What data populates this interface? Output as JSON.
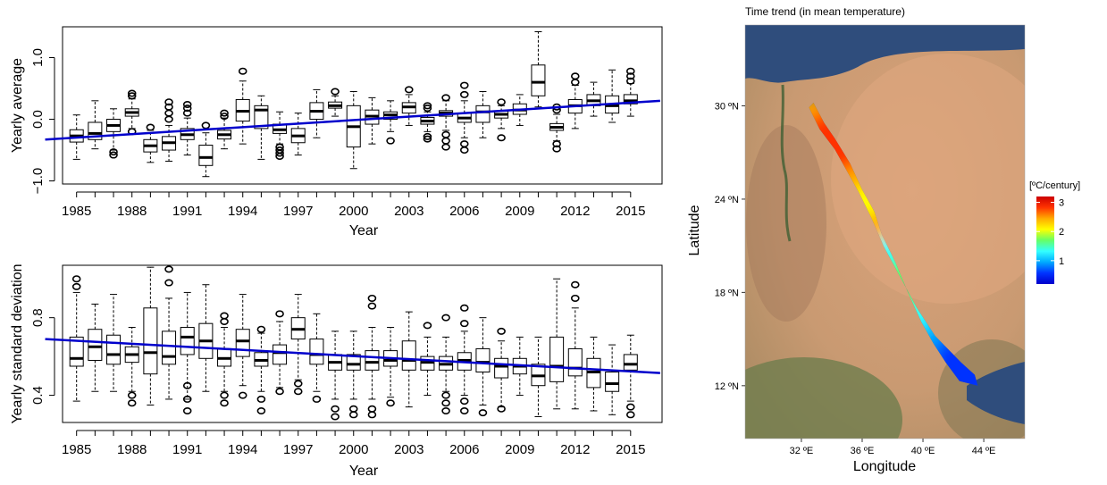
{
  "chart_data": [
    {
      "type": "boxplot",
      "xlabel": "Year",
      "ylabel": "Yearly average",
      "ylim": [
        -1.05,
        1.5
      ],
      "yticks": [
        -1.0,
        0.0,
        1.0
      ],
      "ytick_labels": [
        "−1.0",
        "0.0",
        "1.0"
      ],
      "xtick_labels": [
        "1985",
        "1988",
        "1991",
        "1994",
        "1997",
        "2000",
        "2003",
        "2006",
        "2009",
        "2012",
        "2015"
      ],
      "years": [
        1985,
        1986,
        1987,
        1988,
        1989,
        1990,
        1991,
        1992,
        1993,
        1994,
        1995,
        1996,
        1997,
        1998,
        1999,
        2000,
        2001,
        2002,
        2003,
        2004,
        2005,
        2006,
        2007,
        2008,
        2009,
        2010,
        2011,
        2012,
        2013,
        2014,
        2015
      ],
      "boxes": [
        {
          "year": 1985,
          "min": -0.65,
          "q1": -0.37,
          "median": -0.27,
          "q3": -0.17,
          "max": 0.07,
          "outliers": []
        },
        {
          "year": 1986,
          "min": -0.48,
          "q1": -0.33,
          "median": -0.23,
          "q3": -0.05,
          "max": 0.3,
          "outliers": []
        },
        {
          "year": 1987,
          "min": -0.5,
          "q1": -0.2,
          "median": -0.1,
          "q3": 0.0,
          "max": 0.17,
          "outliers": [
            -0.53,
            -0.58
          ]
        },
        {
          "year": 1988,
          "min": -0.15,
          "q1": 0.05,
          "median": 0.11,
          "q3": 0.17,
          "max": 0.33,
          "outliers": [
            0.38,
            0.42,
            -0.2
          ]
        },
        {
          "year": 1989,
          "min": -0.7,
          "q1": -0.53,
          "median": -0.43,
          "q3": -0.33,
          "max": -0.18,
          "outliers": [
            -0.13
          ]
        },
        {
          "year": 1990,
          "min": -0.68,
          "q1": -0.5,
          "median": -0.38,
          "q3": -0.28,
          "max": -0.1,
          "outliers": [
            0.0,
            0.1,
            0.2,
            0.28
          ]
        },
        {
          "year": 1991,
          "min": -0.58,
          "q1": -0.33,
          "median": -0.25,
          "q3": -0.15,
          "max": 0.02,
          "outliers": [
            0.1,
            0.18,
            0.24
          ]
        },
        {
          "year": 1992,
          "min": -0.93,
          "q1": -0.75,
          "median": -0.62,
          "q3": -0.42,
          "max": -0.22,
          "outliers": [
            -0.1
          ]
        },
        {
          "year": 1993,
          "min": -0.48,
          "q1": -0.32,
          "median": -0.25,
          "q3": -0.18,
          "max": 0.02,
          "outliers": [
            0.05,
            0.1
          ]
        },
        {
          "year": 1994,
          "min": -0.4,
          "q1": -0.03,
          "median": 0.13,
          "q3": 0.32,
          "max": 0.62,
          "outliers": [
            0.78
          ]
        },
        {
          "year": 1995,
          "min": -0.65,
          "q1": -0.15,
          "median": 0.15,
          "q3": 0.22,
          "max": 0.38,
          "outliers": []
        },
        {
          "year": 1996,
          "min": -0.4,
          "q1": -0.23,
          "median": -0.17,
          "q3": -0.08,
          "max": 0.12,
          "outliers": [
            -0.45,
            -0.5,
            -0.55,
            -0.6
          ]
        },
        {
          "year": 1997,
          "min": -0.58,
          "q1": -0.38,
          "median": -0.27,
          "q3": -0.15,
          "max": 0.1,
          "outliers": []
        },
        {
          "year": 1998,
          "min": -0.3,
          "q1": 0.0,
          "median": 0.13,
          "q3": 0.27,
          "max": 0.48,
          "outliers": []
        },
        {
          "year": 1999,
          "min": 0.05,
          "q1": 0.18,
          "median": 0.22,
          "q3": 0.28,
          "max": 0.38,
          "outliers": [
            0.45
          ]
        },
        {
          "year": 2000,
          "min": -0.8,
          "q1": -0.45,
          "median": -0.12,
          "q3": 0.22,
          "max": 0.45,
          "outliers": []
        },
        {
          "year": 2001,
          "min": -0.4,
          "q1": -0.08,
          "median": 0.05,
          "q3": 0.15,
          "max": 0.35,
          "outliers": []
        },
        {
          "year": 2002,
          "min": -0.2,
          "q1": 0.0,
          "median": 0.07,
          "q3": 0.12,
          "max": 0.3,
          "outliers": [
            -0.35
          ]
        },
        {
          "year": 2003,
          "min": -0.1,
          "q1": 0.1,
          "median": 0.2,
          "q3": 0.27,
          "max": 0.4,
          "outliers": [
            0.48
          ]
        },
        {
          "year": 2004,
          "min": -0.2,
          "q1": -0.08,
          "median": -0.03,
          "q3": 0.03,
          "max": 0.12,
          "outliers": [
            -0.28,
            -0.32,
            0.18,
            0.22
          ]
        },
        {
          "year": 2005,
          "min": -0.18,
          "q1": 0.05,
          "median": 0.1,
          "q3": 0.14,
          "max": 0.3,
          "outliers": [
            -0.25,
            -0.35,
            -0.45,
            0.35
          ]
        },
        {
          "year": 2006,
          "min": -0.3,
          "q1": -0.05,
          "median": 0.02,
          "q3": 0.1,
          "max": 0.3,
          "outliers": [
            -0.4,
            -0.5,
            0.4,
            0.55
          ]
        },
        {
          "year": 2007,
          "min": -0.3,
          "q1": -0.05,
          "median": 0.12,
          "q3": 0.22,
          "max": 0.45,
          "outliers": []
        },
        {
          "year": 2008,
          "min": -0.15,
          "q1": 0.02,
          "median": 0.08,
          "q3": 0.13,
          "max": 0.22,
          "outliers": [
            -0.3,
            0.28
          ]
        },
        {
          "year": 2009,
          "min": -0.1,
          "q1": 0.08,
          "median": 0.15,
          "q3": 0.25,
          "max": 0.4,
          "outliers": []
        },
        {
          "year": 2010,
          "min": 0.2,
          "q1": 0.38,
          "median": 0.6,
          "q3": 0.88,
          "max": 1.42,
          "outliers": []
        },
        {
          "year": 2011,
          "min": -0.35,
          "q1": -0.18,
          "median": -0.13,
          "q3": -0.07,
          "max": 0.08,
          "outliers": [
            -0.4,
            -0.48,
            0.15,
            0.2
          ]
        },
        {
          "year": 2012,
          "min": -0.15,
          "q1": 0.1,
          "median": 0.22,
          "q3": 0.32,
          "max": 0.55,
          "outliers": [
            0.6,
            0.7
          ]
        },
        {
          "year": 2013,
          "min": 0.05,
          "q1": 0.22,
          "median": 0.3,
          "q3": 0.4,
          "max": 0.6,
          "outliers": []
        },
        {
          "year": 2014,
          "min": -0.05,
          "q1": 0.1,
          "median": 0.22,
          "q3": 0.38,
          "max": 0.8,
          "outliers": []
        },
        {
          "year": 2015,
          "min": 0.05,
          "q1": 0.25,
          "median": 0.3,
          "q3": 0.4,
          "max": 0.58,
          "outliers": [
            0.62,
            0.7,
            0.78
          ]
        }
      ],
      "trend": {
        "start": [
          1983.3,
          -0.33
        ],
        "end": [
          2016.6,
          0.3
        ],
        "color": "#0000cc"
      }
    },
    {
      "type": "boxplot",
      "xlabel": "Year",
      "ylabel": "Yearly standard deviation",
      "ylim": [
        0.26,
        1.07
      ],
      "yticks": [
        0.4,
        0.8
      ],
      "ytick_labels": [
        "0.4",
        "0.8"
      ],
      "xtick_labels": [
        "1985",
        "1988",
        "1991",
        "1994",
        "1997",
        "2000",
        "2003",
        "2006",
        "2009",
        "2012",
        "2015"
      ],
      "years": [
        1985,
        1986,
        1987,
        1988,
        1989,
        1990,
        1991,
        1992,
        1993,
        1994,
        1995,
        1996,
        1997,
        1998,
        1999,
        2000,
        2001,
        2002,
        2003,
        2004,
        2005,
        2006,
        2007,
        2008,
        2009,
        2010,
        2011,
        2012,
        2013,
        2014,
        2015
      ],
      "boxes": [
        {
          "year": 1985,
          "min": 0.37,
          "q1": 0.55,
          "median": 0.59,
          "q3": 0.7,
          "max": 0.93,
          "outliers": [
            0.96,
            1.0
          ]
        },
        {
          "year": 1986,
          "min": 0.42,
          "q1": 0.58,
          "median": 0.65,
          "q3": 0.74,
          "max": 0.87,
          "outliers": []
        },
        {
          "year": 1987,
          "min": 0.42,
          "q1": 0.56,
          "median": 0.61,
          "q3": 0.71,
          "max": 0.92,
          "outliers": []
        },
        {
          "year": 1988,
          "min": 0.42,
          "q1": 0.57,
          "median": 0.61,
          "q3": 0.65,
          "max": 0.75,
          "outliers": [
            0.36,
            0.4
          ]
        },
        {
          "year": 1989,
          "min": 0.35,
          "q1": 0.51,
          "median": 0.62,
          "q3": 0.85,
          "max": 1.06,
          "outliers": []
        },
        {
          "year": 1990,
          "min": 0.38,
          "q1": 0.56,
          "median": 0.6,
          "q3": 0.73,
          "max": 0.9,
          "outliers": [
            0.98,
            1.05
          ]
        },
        {
          "year": 1991,
          "min": 0.38,
          "q1": 0.61,
          "median": 0.7,
          "q3": 0.75,
          "max": 0.93,
          "outliers": [
            0.32,
            0.38,
            0.45
          ]
        },
        {
          "year": 1992,
          "min": 0.42,
          "q1": 0.59,
          "median": 0.68,
          "q3": 0.77,
          "max": 0.97,
          "outliers": []
        },
        {
          "year": 1993,
          "min": 0.42,
          "q1": 0.55,
          "median": 0.59,
          "q3": 0.64,
          "max": 0.75,
          "outliers": [
            0.36,
            0.4,
            0.78,
            0.81
          ]
        },
        {
          "year": 1994,
          "min": 0.45,
          "q1": 0.6,
          "median": 0.68,
          "q3": 0.74,
          "max": 0.92,
          "outliers": [
            0.4
          ]
        },
        {
          "year": 1995,
          "min": 0.42,
          "q1": 0.55,
          "median": 0.58,
          "q3": 0.62,
          "max": 0.72,
          "outliers": [
            0.32,
            0.38,
            0.74
          ]
        },
        {
          "year": 1996,
          "min": 0.44,
          "q1": 0.56,
          "median": 0.62,
          "q3": 0.66,
          "max": 0.78,
          "outliers": [
            0.42,
            0.82
          ]
        },
        {
          "year": 1997,
          "min": 0.48,
          "q1": 0.69,
          "median": 0.74,
          "q3": 0.8,
          "max": 0.92,
          "outliers": [
            0.42,
            0.46
          ]
        },
        {
          "year": 1998,
          "min": 0.42,
          "q1": 0.56,
          "median": 0.61,
          "q3": 0.69,
          "max": 0.82,
          "outliers": [
            0.38
          ]
        },
        {
          "year": 1999,
          "min": 0.38,
          "q1": 0.53,
          "median": 0.57,
          "q3": 0.61,
          "max": 0.73,
          "outliers": [
            0.29,
            0.33
          ]
        },
        {
          "year": 2000,
          "min": 0.38,
          "q1": 0.53,
          "median": 0.56,
          "q3": 0.61,
          "max": 0.73,
          "outliers": [
            0.3,
            0.33
          ]
        },
        {
          "year": 2001,
          "min": 0.38,
          "q1": 0.53,
          "median": 0.57,
          "q3": 0.63,
          "max": 0.75,
          "outliers": [
            0.3,
            0.33,
            0.86,
            0.9
          ]
        },
        {
          "year": 2002,
          "min": 0.39,
          "q1": 0.55,
          "median": 0.58,
          "q3": 0.63,
          "max": 0.75,
          "outliers": [
            0.36
          ]
        },
        {
          "year": 2003,
          "min": 0.34,
          "q1": 0.53,
          "median": 0.58,
          "q3": 0.68,
          "max": 0.83,
          "outliers": []
        },
        {
          "year": 2004,
          "min": 0.4,
          "q1": 0.53,
          "median": 0.57,
          "q3": 0.6,
          "max": 0.7,
          "outliers": [
            0.76
          ]
        },
        {
          "year": 2005,
          "min": 0.42,
          "q1": 0.53,
          "median": 0.56,
          "q3": 0.6,
          "max": 0.7,
          "outliers": [
            0.32,
            0.36,
            0.4,
            0.8
          ]
        },
        {
          "year": 2006,
          "min": 0.4,
          "q1": 0.53,
          "median": 0.58,
          "q3": 0.62,
          "max": 0.73,
          "outliers": [
            0.32,
            0.37,
            0.77,
            0.85
          ]
        },
        {
          "year": 2007,
          "min": 0.35,
          "q1": 0.52,
          "median": 0.57,
          "q3": 0.64,
          "max": 0.8,
          "outliers": [
            0.31
          ]
        },
        {
          "year": 2008,
          "min": 0.34,
          "q1": 0.49,
          "median": 0.55,
          "q3": 0.59,
          "max": 0.68,
          "outliers": [
            0.33,
            0.73
          ]
        },
        {
          "year": 2009,
          "min": 0.4,
          "q1": 0.51,
          "median": 0.55,
          "q3": 0.59,
          "max": 0.7,
          "outliers": []
        },
        {
          "year": 2010,
          "min": 0.29,
          "q1": 0.45,
          "median": 0.5,
          "q3": 0.56,
          "max": 0.7,
          "outliers": []
        },
        {
          "year": 2011,
          "min": 0.33,
          "q1": 0.47,
          "median": 0.55,
          "q3": 0.7,
          "max": 1.0,
          "outliers": []
        },
        {
          "year": 2012,
          "min": 0.33,
          "q1": 0.5,
          "median": 0.54,
          "q3": 0.64,
          "max": 0.85,
          "outliers": [
            0.9,
            0.97
          ]
        },
        {
          "year": 2013,
          "min": 0.32,
          "q1": 0.44,
          "median": 0.52,
          "q3": 0.59,
          "max": 0.7,
          "outliers": []
        },
        {
          "year": 2014,
          "min": 0.3,
          "q1": 0.42,
          "median": 0.46,
          "q3": 0.52,
          "max": 0.66,
          "outliers": []
        },
        {
          "year": 2015,
          "min": 0.37,
          "q1": 0.53,
          "median": 0.56,
          "q3": 0.61,
          "max": 0.71,
          "outliers": [
            0.3,
            0.34
          ]
        }
      ],
      "trend": {
        "start": [
          1983.3,
          0.69
        ],
        "end": [
          2016.6,
          0.515
        ],
        "color": "#0000cc"
      }
    },
    {
      "type": "heatmap",
      "title": "Time trend (in mean temperature)",
      "xlabel": "Longitude",
      "ylabel": "Latitude",
      "xlim": [
        28.3,
        46.7
      ],
      "ylim": [
        8.6,
        35.2
      ],
      "xticks": [
        32,
        36,
        40,
        44
      ],
      "xtick_labels": [
        "32 ºE",
        "36 ºE",
        "40 ºE",
        "44 ºE"
      ],
      "yticks": [
        12,
        18,
        24,
        30
      ],
      "ytick_labels": [
        "12 ºN",
        "18 ºN",
        "24 ºN",
        "30 ºN"
      ],
      "legend": {
        "title": "[ºC/century]",
        "ticks": [
          1,
          2,
          3
        ],
        "tick_labels": [
          "1",
          "2",
          "3"
        ],
        "range": [
          0.2,
          3.2
        ],
        "colors": [
          "#0000cc",
          "#0033ff",
          "#00aaff",
          "#33ffff",
          "#66ff66",
          "#ffff00",
          "#ffaa00",
          "#ff3300",
          "#cc0000"
        ]
      },
      "sea_outline_lonlat": [
        [
          32.5,
          29.9
        ],
        [
          33.2,
          28.5
        ],
        [
          34.2,
          27.2
        ],
        [
          35.0,
          25.8
        ],
        [
          35.8,
          24.4
        ],
        [
          36.6,
          22.8
        ],
        [
          37.4,
          21.0
        ],
        [
          38.5,
          19.0
        ],
        [
          39.6,
          17.0
        ],
        [
          40.8,
          15.2
        ],
        [
          41.8,
          14.2
        ],
        [
          42.5,
          13.5
        ],
        [
          43.4,
          12.7
        ],
        [
          43.6,
          12.0
        ],
        [
          42.4,
          12.3
        ],
        [
          41.5,
          13.5
        ],
        [
          40.7,
          14.7
        ],
        [
          39.9,
          16.1
        ],
        [
          39.1,
          17.8
        ],
        [
          38.2,
          19.9
        ],
        [
          37.3,
          21.7
        ],
        [
          36.8,
          23.2
        ],
        [
          36.0,
          24.6
        ],
        [
          35.2,
          26.3
        ],
        [
          34.2,
          27.9
        ],
        [
          33.5,
          28.9
        ],
        [
          32.8,
          30.2
        ]
      ],
      "trend_samples": [
        {
          "lon": 32.9,
          "lat": 29.0,
          "value": 2.6
        },
        {
          "lon": 33.8,
          "lat": 28.0,
          "value": 3.0
        },
        {
          "lon": 34.5,
          "lat": 27.0,
          "value": 2.9
        },
        {
          "lon": 35.2,
          "lat": 25.8,
          "value": 2.9
        },
        {
          "lon": 35.9,
          "lat": 24.5,
          "value": 2.3
        },
        {
          "lon": 36.6,
          "lat": 23.2,
          "value": 2.1
        },
        {
          "lon": 37.4,
          "lat": 21.6,
          "value": 2.6
        },
        {
          "lon": 38.2,
          "lat": 20.0,
          "value": 1.5
        },
        {
          "lon": 38.9,
          "lat": 18.6,
          "value": 1.8
        },
        {
          "lon": 39.6,
          "lat": 17.2,
          "value": 1.6
        },
        {
          "lon": 40.4,
          "lat": 15.8,
          "value": 1.3
        },
        {
          "lon": 41.3,
          "lat": 14.6,
          "value": 0.9
        },
        {
          "lon": 42.3,
          "lat": 13.6,
          "value": 0.5
        },
        {
          "lon": 43.0,
          "lat": 12.7,
          "value": 0.4
        }
      ]
    }
  ]
}
